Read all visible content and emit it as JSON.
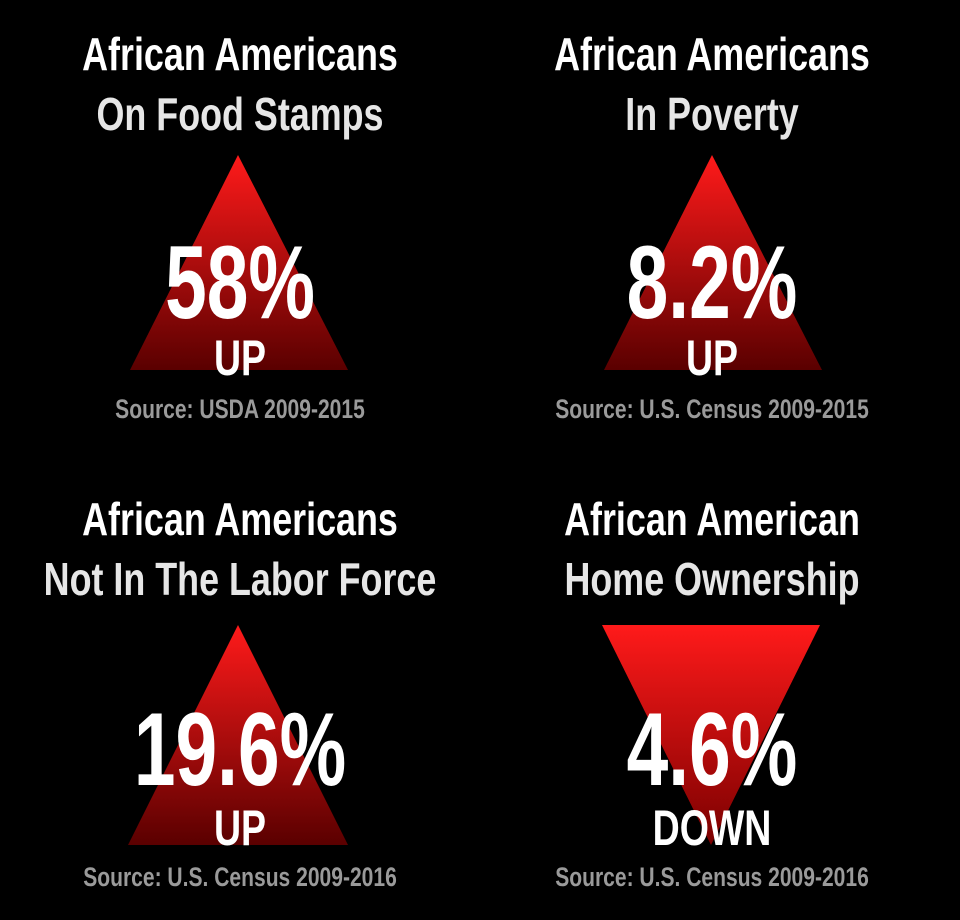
{
  "panels": [
    {
      "title_lines": [
        "African Americans",
        "On Food Stamps"
      ],
      "value": "58%",
      "direction": "UP",
      "source": "Source: USDA 2009-2015"
    },
    {
      "title_lines": [
        "African Americans",
        "In Poverty"
      ],
      "value": "8.2%",
      "direction": "UP",
      "source": "Source: U.S. Census 2009-2015"
    },
    {
      "title_lines": [
        "African Americans",
        "Not In The Labor Force"
      ],
      "value": "19.6%",
      "direction": "UP",
      "source": "Source: U.S. Census 2009-2016"
    },
    {
      "title_lines": [
        "African American",
        "Home Ownership"
      ],
      "value": "4.6%",
      "direction": "DOWN",
      "source": "Source: U.S. Census 2009-2016"
    }
  ]
}
